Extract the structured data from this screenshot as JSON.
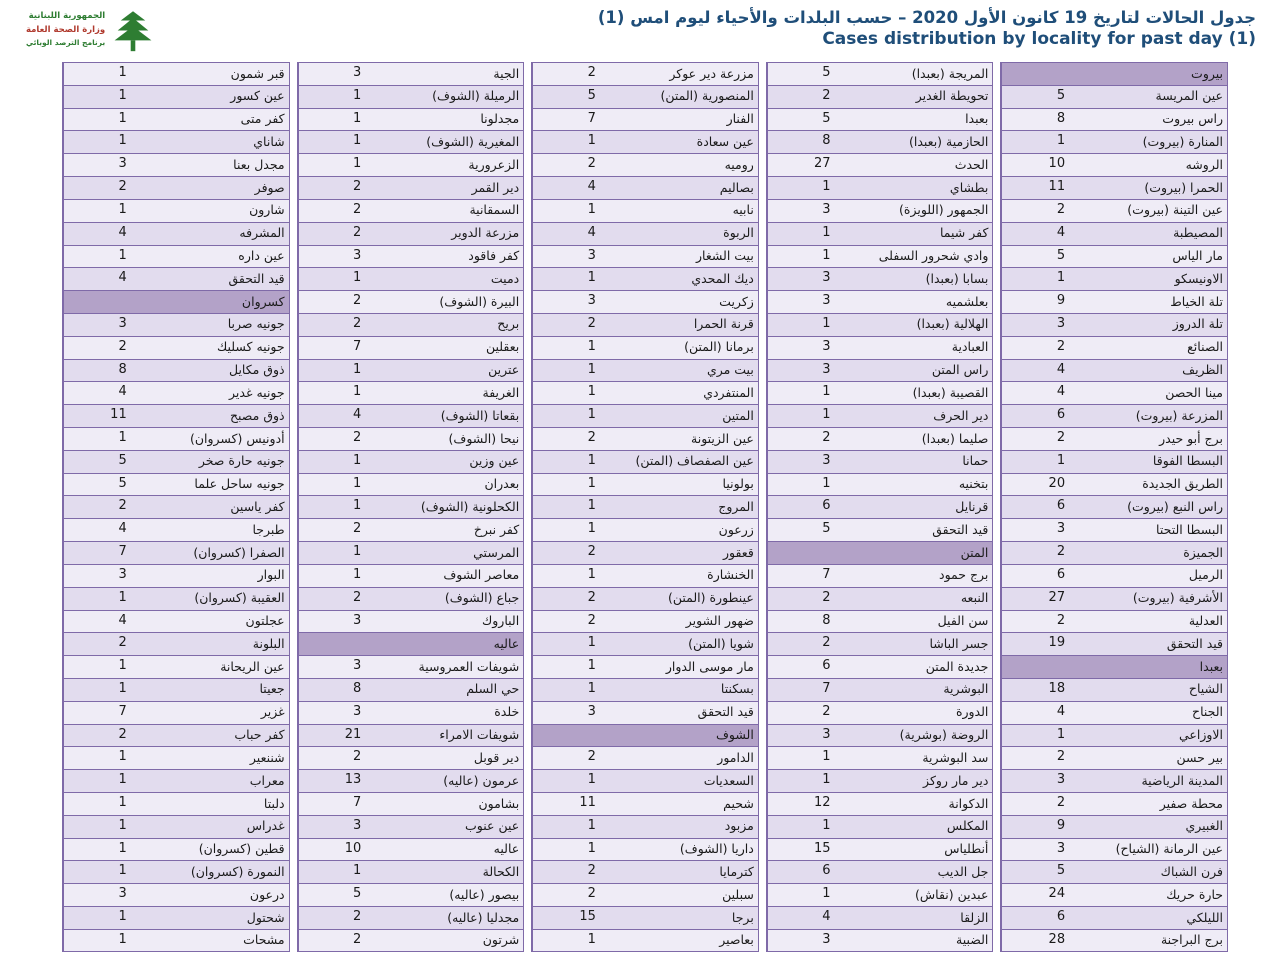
{
  "page": {
    "title_ar": "جدول الحالات لتاريخ 19 كانون الأول 2020 – حسب البلدات والأحياء ليوم امس (1)",
    "title_en": "Cases distribution by locality for past day (1)",
    "title_color": "#1f4e79"
  },
  "logo": {
    "line1": "الجمهورية اللبنانية",
    "line2": "وزارة الصحة العامة",
    "line3": "برنامج الترصد الوبائي",
    "line1_color": "#2e7d32",
    "line2_color": "#b03a2e",
    "line3_color": "#2e7d32",
    "cedar_color": "#2e7d32"
  },
  "table": {
    "colors": {
      "border": "#7f6aa8",
      "section_header_bg": "#b3a2c8",
      "row_bg_a": "#efecf6",
      "row_bg_b": "#e2dcee"
    },
    "columns": [
      {
        "cells": [
          {
            "n": "بيروت",
            "h": true
          },
          {
            "n": "عين المريسة",
            "v": "5"
          },
          {
            "n": "راس بيروت",
            "v": "8"
          },
          {
            "n": "المنارة (بيروت)",
            "v": "1"
          },
          {
            "n": "الروشه",
            "v": "10"
          },
          {
            "n": "الحمرا (بيروت)",
            "v": "11"
          },
          {
            "n": "عين التينة (بيروت)",
            "v": "2"
          },
          {
            "n": "المصيطبة",
            "v": "4"
          },
          {
            "n": "مار الياس",
            "v": "5"
          },
          {
            "n": "الاونيسكو",
            "v": "1"
          },
          {
            "n": "تلة الخياط",
            "v": "9"
          },
          {
            "n": "تلة الدروز",
            "v": "3"
          },
          {
            "n": "الصنائع",
            "v": "2"
          },
          {
            "n": "الظريف",
            "v": "4"
          },
          {
            "n": "مينا الحصن",
            "v": "4"
          },
          {
            "n": "المزرعة (بيروت)",
            "v": "6"
          },
          {
            "n": "برج أبو حيدر",
            "v": "2"
          },
          {
            "n": "البسطا الفوقا",
            "v": "1"
          },
          {
            "n": "الطريق الجديدة",
            "v": "20"
          },
          {
            "n": "راس النبع (بيروت)",
            "v": "6"
          },
          {
            "n": "البسطا التحتا",
            "v": "3"
          },
          {
            "n": "الجميزة",
            "v": "2"
          },
          {
            "n": "الرميل",
            "v": "6"
          },
          {
            "n": "الأشرفية (بيروت)",
            "v": "27"
          },
          {
            "n": "العدلية",
            "v": "2"
          },
          {
            "n": "قيد التحقق",
            "v": "19"
          },
          {
            "n": "بعبدا",
            "h": true
          },
          {
            "n": "الشياح",
            "v": "18"
          },
          {
            "n": "الجناح",
            "v": "4"
          },
          {
            "n": "الاوزاعي",
            "v": "1"
          },
          {
            "n": "بير حسن",
            "v": "2"
          },
          {
            "n": "المدينة الرياضية",
            "v": "3"
          },
          {
            "n": "محطة صفير",
            "v": "2"
          },
          {
            "n": "الغبيري",
            "v": "9"
          },
          {
            "n": "عين الرمانة (الشياح)",
            "v": "3"
          },
          {
            "n": "فرن الشباك",
            "v": "5"
          },
          {
            "n": "حارة حريك",
            "v": "24"
          },
          {
            "n": "الليلكي",
            "v": "6"
          },
          {
            "n": "برج البراجنة",
            "v": "28"
          }
        ]
      },
      {
        "cells": [
          {
            "n": "المريجة (بعبدا)",
            "v": "5"
          },
          {
            "n": "تحويطة الغدير",
            "v": "2"
          },
          {
            "n": "بعبدا",
            "v": "5"
          },
          {
            "n": "الحازمية (بعبدا)",
            "v": "8"
          },
          {
            "n": "الحدث",
            "v": "27"
          },
          {
            "n": "بطشاي",
            "v": "1"
          },
          {
            "n": "الجمهور (اللويزة)",
            "v": "3"
          },
          {
            "n": "كفر شيما",
            "v": "1"
          },
          {
            "n": "وادي شحرور السفلى",
            "v": "1"
          },
          {
            "n": "بسابا (بعبدا)",
            "v": "3"
          },
          {
            "n": "بعلشميه",
            "v": "3"
          },
          {
            "n": "الهلالية (بعبدا)",
            "v": "1"
          },
          {
            "n": "العبادية",
            "v": "3"
          },
          {
            "n": "راس المتن",
            "v": "3"
          },
          {
            "n": "القصيبة (بعبدا)",
            "v": "1"
          },
          {
            "n": "دير الحرف",
            "v": "1"
          },
          {
            "n": "صليما (بعبدا)",
            "v": "2"
          },
          {
            "n": "حمانا",
            "v": "3"
          },
          {
            "n": "بتخنيه",
            "v": "1"
          },
          {
            "n": "قرنايل",
            "v": "6"
          },
          {
            "n": "قيد التحقق",
            "v": "5"
          },
          {
            "n": "المتن",
            "h": true
          },
          {
            "n": "برج حمود",
            "v": "7"
          },
          {
            "n": "النبعه",
            "v": "2"
          },
          {
            "n": "سن الفيل",
            "v": "8"
          },
          {
            "n": "جسر الباشا",
            "v": "2"
          },
          {
            "n": "جديدة المتن",
            "v": "6"
          },
          {
            "n": "البوشرية",
            "v": "7"
          },
          {
            "n": "الدورة",
            "v": "2"
          },
          {
            "n": "الروضة (بوشرية)",
            "v": "3"
          },
          {
            "n": "سد البوشرية",
            "v": "1"
          },
          {
            "n": "دير مار روكز",
            "v": "1"
          },
          {
            "n": "الدكوانة",
            "v": "12"
          },
          {
            "n": "المكلس",
            "v": "1"
          },
          {
            "n": "أنطلياس",
            "v": "15"
          },
          {
            "n": "جل الديب",
            "v": "6"
          },
          {
            "n": "عبدين (نقاش)",
            "v": "1"
          },
          {
            "n": "الزلقا",
            "v": "4"
          },
          {
            "n": "الضبية",
            "v": "3"
          }
        ]
      },
      {
        "cells": [
          {
            "n": "مزرعة دير عوكر",
            "v": "2"
          },
          {
            "n": "المنصورية (المتن)",
            "v": "5"
          },
          {
            "n": "الفنار",
            "v": "7"
          },
          {
            "n": "عين سعادة",
            "v": "1"
          },
          {
            "n": "روميه",
            "v": "2"
          },
          {
            "n": "بصاليم",
            "v": "4"
          },
          {
            "n": "نابيه",
            "v": "1"
          },
          {
            "n": "الربوة",
            "v": "4"
          },
          {
            "n": "بيت الشغار",
            "v": "3"
          },
          {
            "n": "ديك المحدي",
            "v": "1"
          },
          {
            "n": "زكريت",
            "v": "3"
          },
          {
            "n": "قرنة الحمرا",
            "v": "2"
          },
          {
            "n": "برمانا (المتن)",
            "v": "1"
          },
          {
            "n": "بيت مري",
            "v": "1"
          },
          {
            "n": "المنتفردي",
            "v": "1"
          },
          {
            "n": "المتين",
            "v": "1"
          },
          {
            "n": "عين الزيتونة",
            "v": "2"
          },
          {
            "n": "عين الصفصاف (المتن)",
            "v": "1"
          },
          {
            "n": "بولونيا",
            "v": "1"
          },
          {
            "n": "المروج",
            "v": "1"
          },
          {
            "n": "زرعون",
            "v": "1"
          },
          {
            "n": "قعقور",
            "v": "2"
          },
          {
            "n": "الخنشارة",
            "v": "1"
          },
          {
            "n": "عينطورة (المتن)",
            "v": "2"
          },
          {
            "n": "ضهور الشوير",
            "v": "2"
          },
          {
            "n": "شويا (المتن)",
            "v": "1"
          },
          {
            "n": "مار موسى الدوار",
            "v": "1"
          },
          {
            "n": "بسكنتا",
            "v": "1"
          },
          {
            "n": "قيد التحقق",
            "v": "3"
          },
          {
            "n": "الشوف",
            "h": true
          },
          {
            "n": "الدامور",
            "v": "2"
          },
          {
            "n": "السعديات",
            "v": "1"
          },
          {
            "n": "شحيم",
            "v": "11"
          },
          {
            "n": "مزبود",
            "v": "1"
          },
          {
            "n": "داريا (الشوف)",
            "v": "1"
          },
          {
            "n": "كترمايا",
            "v": "2"
          },
          {
            "n": "سبلين",
            "v": "2"
          },
          {
            "n": "برجا",
            "v": "15"
          },
          {
            "n": "بعاصير",
            "v": "1"
          }
        ]
      },
      {
        "cells": [
          {
            "n": "الجية",
            "v": "3"
          },
          {
            "n": "الرميلة (الشوف)",
            "v": "1"
          },
          {
            "n": "مجدلونا",
            "v": "1"
          },
          {
            "n": "المغيرية (الشوف)",
            "v": "1"
          },
          {
            "n": "الزعرورية",
            "v": "1"
          },
          {
            "n": "دير القمر",
            "v": "2"
          },
          {
            "n": "السمقانية",
            "v": "2"
          },
          {
            "n": "مزرعة الدوير",
            "v": "2"
          },
          {
            "n": "كفر فاقود",
            "v": "3"
          },
          {
            "n": "دميت",
            "v": "1"
          },
          {
            "n": "البيرة (الشوف)",
            "v": "2"
          },
          {
            "n": "بريح",
            "v": "2"
          },
          {
            "n": "بعقلين",
            "v": "7"
          },
          {
            "n": "عترين",
            "v": "1"
          },
          {
            "n": "الغريفة",
            "v": "1"
          },
          {
            "n": "بقعاتا (الشوف)",
            "v": "4"
          },
          {
            "n": "نيحا (الشوف)",
            "v": "2"
          },
          {
            "n": "عين وزين",
            "v": "1"
          },
          {
            "n": "بعدران",
            "v": "1"
          },
          {
            "n": "الكحلونية (الشوف)",
            "v": "1"
          },
          {
            "n": "كفر نبرخ",
            "v": "2"
          },
          {
            "n": "المرستي",
            "v": "1"
          },
          {
            "n": "معاصر الشوف",
            "v": "1"
          },
          {
            "n": "جباع (الشوف)",
            "v": "2"
          },
          {
            "n": "الباروك",
            "v": "3"
          },
          {
            "n": "عاليه",
            "h": true
          },
          {
            "n": "شويفات العمروسية",
            "v": "3"
          },
          {
            "n": "حي السلم",
            "v": "8"
          },
          {
            "n": "خلدة",
            "v": "3"
          },
          {
            "n": "شويفات الامراء",
            "v": "21"
          },
          {
            "n": "دير قوبل",
            "v": "2"
          },
          {
            "n": "عرمون (عاليه)",
            "v": "13"
          },
          {
            "n": "بشامون",
            "v": "7"
          },
          {
            "n": "عين عنوب",
            "v": "3"
          },
          {
            "n": "عاليه",
            "v": "10"
          },
          {
            "n": "الكحالة",
            "v": "1"
          },
          {
            "n": "بيصور (عاليه)",
            "v": "5"
          },
          {
            "n": "مجدليا (عاليه)",
            "v": "2"
          },
          {
            "n": "شرتون",
            "v": "2"
          }
        ]
      },
      {
        "cells": [
          {
            "n": "قبر شمون",
            "v": "1"
          },
          {
            "n": "عين كسور",
            "v": "1"
          },
          {
            "n": "كفر متى",
            "v": "1"
          },
          {
            "n": "شاناي",
            "v": "1"
          },
          {
            "n": "مجدل بعنا",
            "v": "3"
          },
          {
            "n": "صوفر",
            "v": "2"
          },
          {
            "n": "شارون",
            "v": "1"
          },
          {
            "n": "المشرفه",
            "v": "4"
          },
          {
            "n": "عين داره",
            "v": "1"
          },
          {
            "n": "قيد التحقق",
            "v": "4"
          },
          {
            "n": "كسروان",
            "h": true
          },
          {
            "n": "جونيه صربا",
            "v": "3"
          },
          {
            "n": "جونيه كسليك",
            "v": "2"
          },
          {
            "n": "ذوق مكايل",
            "v": "8"
          },
          {
            "n": "جونيه غدير",
            "v": "4"
          },
          {
            "n": "ذوق مصبح",
            "v": "11"
          },
          {
            "n": "أدونيس (كسروان)",
            "v": "1"
          },
          {
            "n": "جونيه حارة صخر",
            "v": "5"
          },
          {
            "n": "جونيه ساحل علما",
            "v": "5"
          },
          {
            "n": "كفر ياسين",
            "v": "2"
          },
          {
            "n": "طبرجا",
            "v": "4"
          },
          {
            "n": "الصفرا (كسروان)",
            "v": "7"
          },
          {
            "n": "البوار",
            "v": "3"
          },
          {
            "n": "العقيبة (كسروان)",
            "v": "1"
          },
          {
            "n": "عجلتون",
            "v": "4"
          },
          {
            "n": "البلونة",
            "v": "2"
          },
          {
            "n": "عين الريحانة",
            "v": "1"
          },
          {
            "n": "جعيتا",
            "v": "1"
          },
          {
            "n": "غزير",
            "v": "7"
          },
          {
            "n": "كفر حباب",
            "v": "2"
          },
          {
            "n": "شننعير",
            "v": "1"
          },
          {
            "n": "معراب",
            "v": "1"
          },
          {
            "n": "دلبتا",
            "v": "1"
          },
          {
            "n": "غدراس",
            "v": "1"
          },
          {
            "n": "قطين (كسروان)",
            "v": "1"
          },
          {
            "n": "النمورة (كسروان)",
            "v": "1"
          },
          {
            "n": "درعون",
            "v": "3"
          },
          {
            "n": "شحتول",
            "v": "1"
          },
          {
            "n": "مشحات",
            "v": "1"
          }
        ]
      }
    ]
  }
}
